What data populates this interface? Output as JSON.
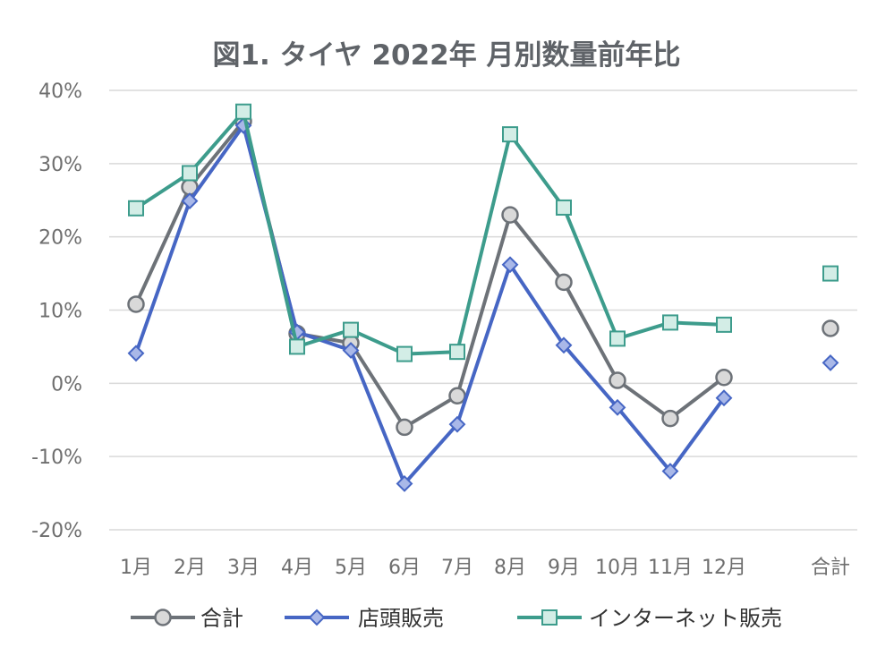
{
  "chart_data": {
    "type": "line",
    "title": "図1. タイヤ 2022年 月別数量前年比",
    "xlabel": "",
    "ylabel": "",
    "categories": [
      "1月",
      "2月",
      "3月",
      "4月",
      "5月",
      "6月",
      "7月",
      "8月",
      "9月",
      "10月",
      "11月",
      "12月",
      "合計"
    ],
    "y_ticks": [
      "40%",
      "30%",
      "20%",
      "10%",
      "0%",
      "-10%",
      "-20%"
    ],
    "y_tick_values": [
      40,
      30,
      20,
      10,
      0,
      -10,
      -20
    ],
    "ylim": [
      -20,
      40
    ],
    "grid": true,
    "legend_position": "bottom",
    "series": [
      {
        "name": "合計",
        "color": "#6d7278",
        "marker": "circle",
        "marker_fill": "#d9d9d9",
        "values": [
          10.8,
          26.8,
          35.8,
          6.8,
          5.5,
          -6.0,
          -1.7,
          23.0,
          13.8,
          0.4,
          -4.8,
          0.8,
          7.5
        ]
      },
      {
        "name": "店頭販売",
        "color": "#4666c4",
        "marker": "diamond",
        "marker_fill": "#a9b8e8",
        "values": [
          4.1,
          24.9,
          35.2,
          7.0,
          4.5,
          -13.7,
          -5.6,
          16.2,
          5.2,
          -3.3,
          -12.0,
          -2.0,
          2.8
        ]
      },
      {
        "name": "インターネット販売",
        "color": "#3d9c8c",
        "marker": "square",
        "marker_fill": "#d3ede6",
        "values": [
          23.9,
          28.7,
          37.1,
          5.0,
          7.3,
          4.0,
          4.3,
          34.0,
          24.0,
          6.1,
          8.3,
          8.0,
          15.0
        ]
      }
    ]
  }
}
